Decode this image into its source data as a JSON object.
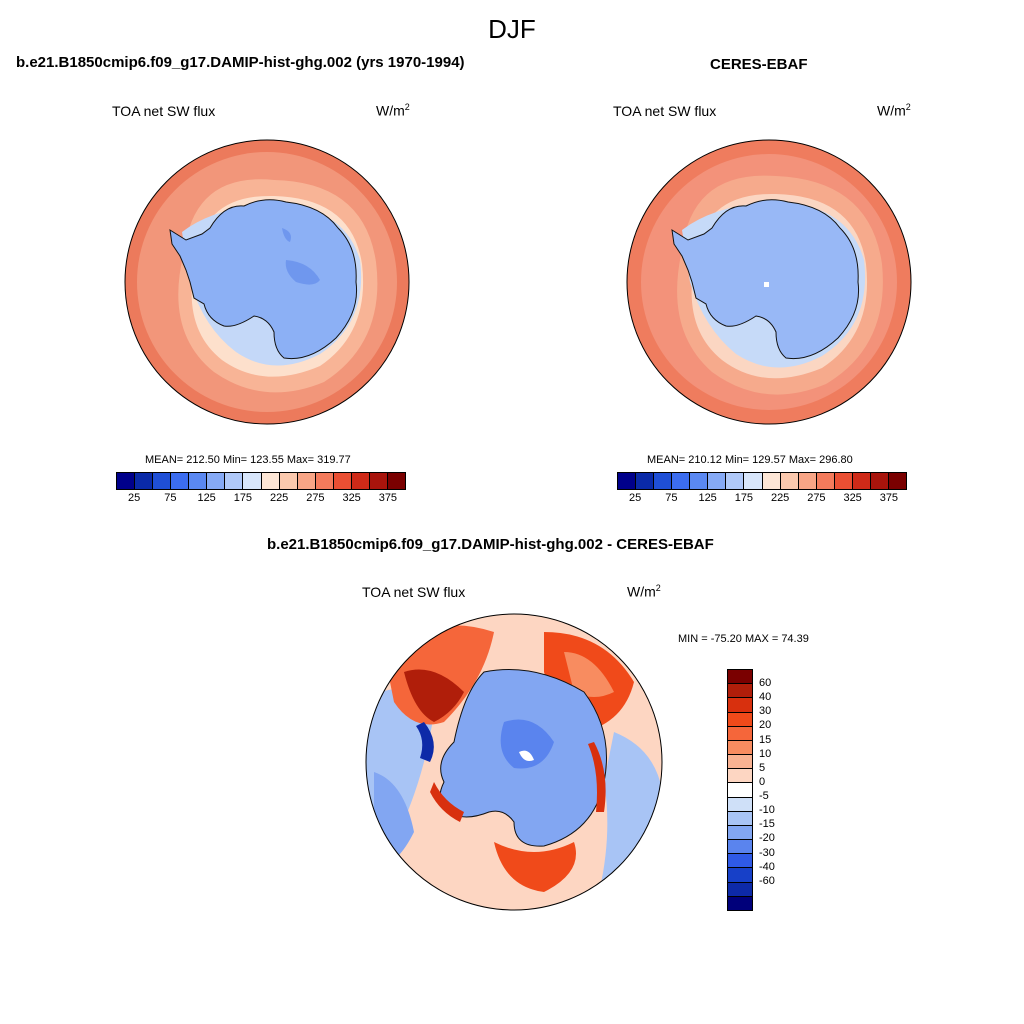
{
  "figure": {
    "title": "DJF"
  },
  "panels": [
    {
      "title": "b.e21.B1850cmip6.f09_g17.DAMIP-hist-ghg.002 (yrs 1970-1994)",
      "variable": "TOA net SW flux",
      "unit_base": "W/m",
      "unit_exp": "2",
      "stats": "MEAN= 212.50  Min= 123.55  Max= 319.77",
      "colors": {
        "land": "#8cb0f5",
        "ring_inner": "#c4d8f8",
        "ring_mid": "#fde0cc",
        "ring_outer": "#f8b496",
        "ocean": "#f2967a",
        "edge": "#ec7a5c"
      }
    },
    {
      "title": "CERES-EBAF",
      "variable": "TOA net SW flux",
      "unit_base": "W/m",
      "unit_exp": "2",
      "stats": "MEAN= 210.12  Min= 129.57  Max= 296.80",
      "colors": {
        "land": "#98b8f6",
        "ring_inner": "#c6daf8",
        "ring_mid": "#fbd6c2",
        "ring_outer": "#f6aa8c",
        "ocean": "#f3927a",
        "edge": "#ef7c5e"
      }
    },
    {
      "title": "b.e21.B1850cmip6.f09_g17.DAMIP-hist-ghg.002 - CERES-EBAF",
      "variable": "TOA net SW flux",
      "unit_base": "W/m",
      "unit_exp": "2",
      "stats": "MIN = -75.20 MAX =  74.39"
    }
  ],
  "colorbar_abs": {
    "colors": [
      "#00008b",
      "#0a2aa8",
      "#1f4fd6",
      "#3c6df0",
      "#5a88f2",
      "#86aaf6",
      "#b0c9f9",
      "#d8e6fb",
      "#fde6d6",
      "#fbc9ae",
      "#f8a586",
      "#f47b5c",
      "#ea4f33",
      "#cf2a18",
      "#a8140c",
      "#7a0000"
    ],
    "ticks": [
      "25",
      "75",
      "125",
      "175",
      "225",
      "275",
      "325",
      "375"
    ]
  },
  "colorbar_diff": {
    "colors": [
      "#7a0000",
      "#b01e0a",
      "#d8300e",
      "#f04a1a",
      "#f5663a",
      "#f88c60",
      "#f9b292",
      "#fdd6c2",
      "#ffffff",
      "#cfe0f8",
      "#a8c4f5",
      "#82a6f2",
      "#5a84ee",
      "#2f5ae6",
      "#1740c8",
      "#0d2aa8",
      "#00007a"
    ],
    "ticks": [
      "60",
      "40",
      "30",
      "20",
      "15",
      "10",
      "5",
      "0",
      "-5",
      "-10",
      "-15",
      "-20",
      "-30",
      "-40",
      "-60"
    ]
  }
}
